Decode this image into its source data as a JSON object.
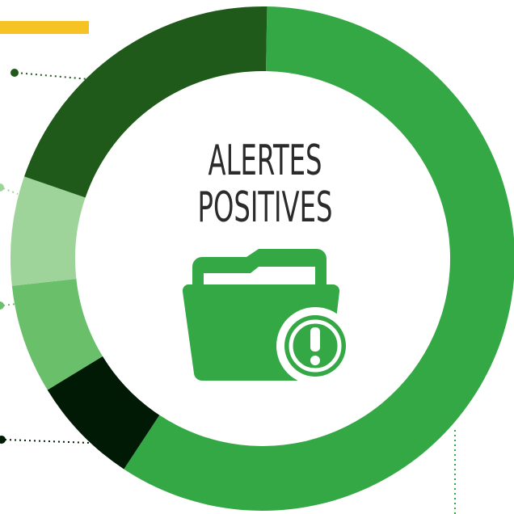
{
  "chart_data": {
    "type": "donut",
    "title": "ALERTES POSITIVES",
    "values": [
      59,
      7,
      7,
      7,
      20
    ],
    "colors": [
      "#35a846",
      "#001a05",
      "#6abf6a",
      "#9ed49a",
      "#1f5a1a"
    ]
  }
}
